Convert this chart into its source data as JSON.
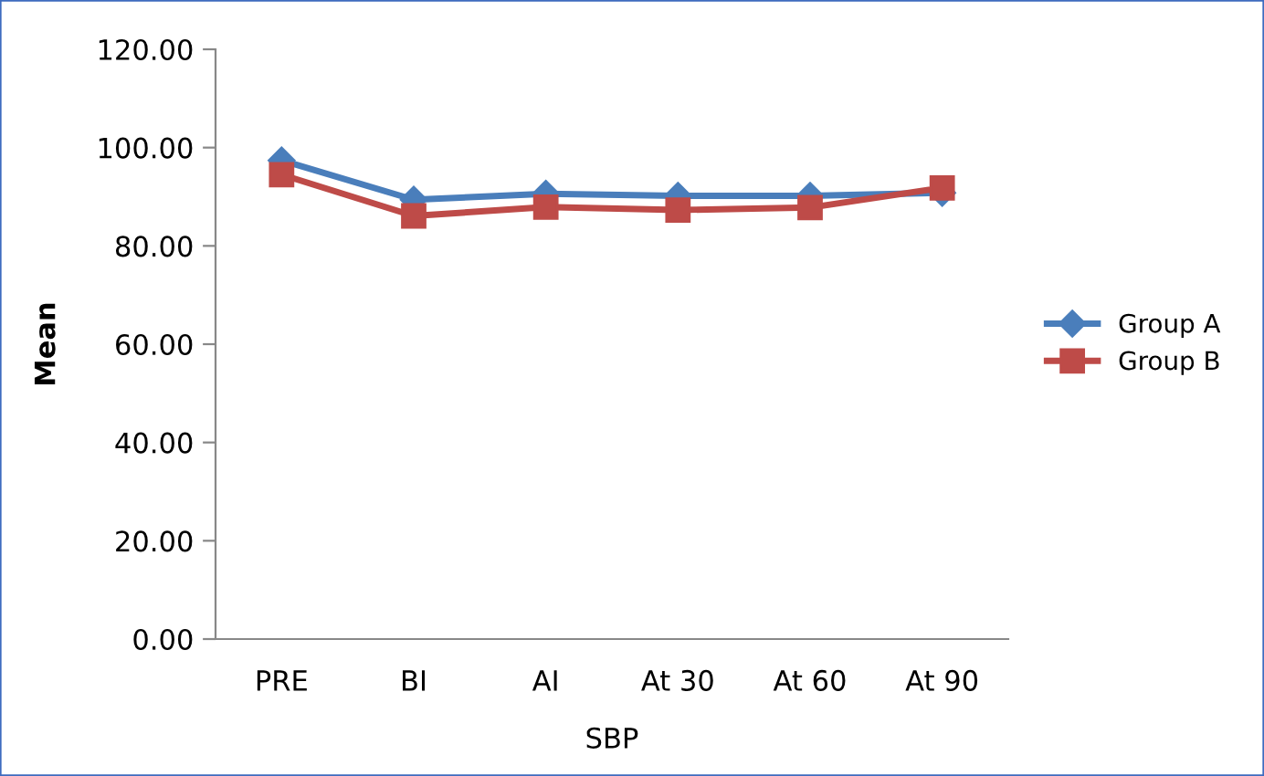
{
  "chart_data": {
    "type": "line",
    "xlabel": "SBP",
    "ylabel": "Mean",
    "categories": [
      "PRE",
      "BI",
      "AI",
      "At 30",
      "At 60",
      "At 90"
    ],
    "series": [
      {
        "name": "Group A",
        "color": "#4a7ebb",
        "marker": "diamond",
        "values": [
          97.4,
          89.4,
          90.6,
          90.2,
          90.2,
          90.8
        ]
      },
      {
        "name": "Group B",
        "color": "#be4b48",
        "marker": "square",
        "values": [
          94.5,
          86.1,
          87.9,
          87.3,
          87.8,
          91.8
        ]
      }
    ],
    "ylim": [
      0,
      120
    ],
    "yticks": [
      {
        "value": 0,
        "label": "0.00"
      },
      {
        "value": 20,
        "label": "20.00"
      },
      {
        "value": 40,
        "label": "40.00"
      },
      {
        "value": 60,
        "label": "60.00"
      },
      {
        "value": 80,
        "label": "80.00"
      },
      {
        "value": 100,
        "label": "100.00"
      },
      {
        "value": 120,
        "label": "120.00"
      }
    ],
    "grid": false,
    "legend": "right"
  }
}
